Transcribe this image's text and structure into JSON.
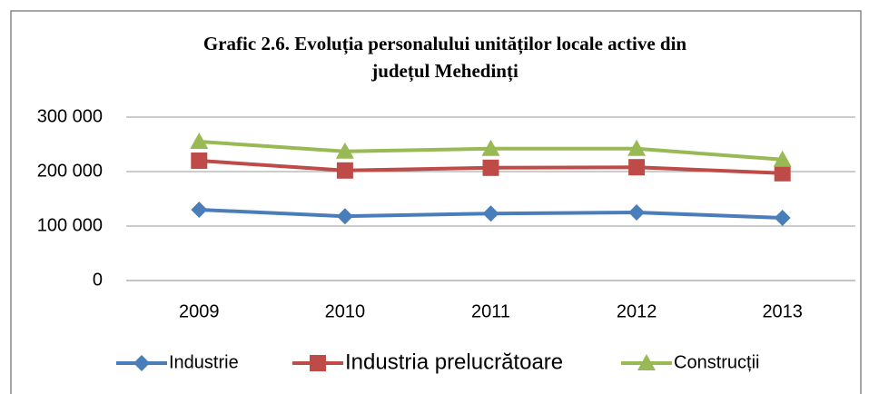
{
  "chart_data": {
    "type": "line",
    "title": [
      "Grafic 2.6. Evoluția personalului unităților locale active din",
      "județul Mehedinți"
    ],
    "categories": [
      "2009",
      "2010",
      "2011",
      "2012",
      "2013"
    ],
    "series": [
      {
        "name": "Industrie",
        "color": "#4a7ebb",
        "marker": "diamond",
        "values": [
          130000,
          118000,
          123000,
          125000,
          115000
        ]
      },
      {
        "name": "Industria prelucrătoare",
        "color": "#be4b48",
        "marker": "square",
        "values": [
          220000,
          202000,
          207000,
          208000,
          197000
        ]
      },
      {
        "name": "Construcții",
        "color": "#98b954",
        "marker": "triangle",
        "values": [
          255000,
          237000,
          242000,
          242000,
          222000
        ]
      }
    ],
    "ylim": [
      0,
      300000
    ],
    "yticks": [
      0,
      {
        "value": 100000,
        "label": "100 000"
      },
      {
        "value": 200000,
        "label": "200 000"
      },
      {
        "value": 300000,
        "label": "300 000"
      }
    ],
    "grid": true,
    "legend": "bottom"
  }
}
